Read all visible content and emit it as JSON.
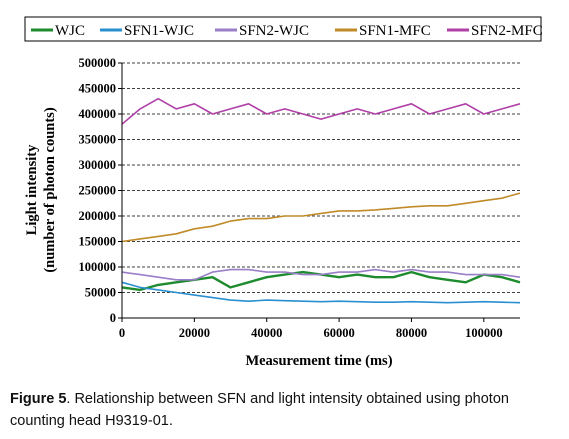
{
  "chart_data": {
    "type": "line",
    "xlabel": "Measurement time (ms)",
    "ylabel": [
      "Light intensity",
      "(number of photon counts)"
    ],
    "xlim": [
      0,
      110000
    ],
    "ylim": [
      0,
      500000
    ],
    "x_ticks": [
      "0",
      "20000",
      "40000",
      "60000",
      "80000",
      "100000"
    ],
    "y_ticks": [
      "0",
      "50000",
      "100000",
      "150000",
      "200000",
      "250000",
      "300000",
      "350000",
      "400000",
      "450000",
      "500000"
    ],
    "grid": "horizontal dashed",
    "legend_position": "top",
    "series": [
      {
        "name": "WJC",
        "color": "#1e8c2e",
        "x": [
          0,
          5000,
          10000,
          15000,
          20000,
          25000,
          30000,
          35000,
          40000,
          45000,
          50000,
          55000,
          60000,
          65000,
          70000,
          75000,
          80000,
          85000,
          90000,
          95000,
          100000,
          105000,
          110000
        ],
        "y": [
          60000,
          55000,
          65000,
          70000,
          75000,
          80000,
          60000,
          70000,
          80000,
          85000,
          90000,
          85000,
          80000,
          85000,
          80000,
          80000,
          90000,
          80000,
          75000,
          70000,
          85000,
          80000,
          70000
        ]
      },
      {
        "name": "SFN1-WJC",
        "color": "#2a8fd0",
        "x": [
          0,
          5000,
          10000,
          15000,
          20000,
          25000,
          30000,
          35000,
          40000,
          45000,
          50000,
          55000,
          60000,
          65000,
          70000,
          75000,
          80000,
          85000,
          90000,
          95000,
          100000,
          105000,
          110000
        ],
        "y": [
          70000,
          60000,
          55000,
          50000,
          45000,
          40000,
          35000,
          33000,
          35000,
          34000,
          33000,
          32000,
          33000,
          32000,
          31000,
          31000,
          32000,
          31000,
          30000,
          31000,
          32000,
          31000,
          30000
        ]
      },
      {
        "name": "SFN2-WJC",
        "color": "#9a7fc8",
        "x": [
          0,
          5000,
          10000,
          15000,
          20000,
          25000,
          30000,
          35000,
          40000,
          45000,
          50000,
          55000,
          60000,
          65000,
          70000,
          75000,
          80000,
          85000,
          90000,
          95000,
          100000,
          105000,
          110000
        ],
        "y": [
          90000,
          85000,
          80000,
          75000,
          75000,
          90000,
          95000,
          95000,
          90000,
          90000,
          85000,
          85000,
          90000,
          90000,
          95000,
          90000,
          95000,
          90000,
          90000,
          85000,
          85000,
          85000,
          80000
        ]
      },
      {
        "name": "SFN1-MFC",
        "color": "#c08a28",
        "x": [
          0,
          5000,
          10000,
          15000,
          20000,
          25000,
          30000,
          35000,
          40000,
          45000,
          50000,
          55000,
          60000,
          65000,
          70000,
          75000,
          80000,
          85000,
          90000,
          95000,
          100000,
          105000,
          110000
        ],
        "y": [
          150000,
          155000,
          160000,
          165000,
          175000,
          180000,
          190000,
          195000,
          195000,
          200000,
          200000,
          205000,
          210000,
          210000,
          212000,
          215000,
          218000,
          220000,
          220000,
          225000,
          230000,
          235000,
          245000
        ]
      },
      {
        "name": "SFN2-MFC",
        "color": "#b03fa8",
        "x": [
          0,
          5000,
          10000,
          15000,
          20000,
          25000,
          30000,
          35000,
          40000,
          45000,
          50000,
          55000,
          60000,
          65000,
          70000,
          75000,
          80000,
          85000,
          90000,
          95000,
          100000,
          105000,
          110000
        ],
        "y": [
          380000,
          410000,
          430000,
          410000,
          420000,
          400000,
          410000,
          420000,
          400000,
          410000,
          400000,
          390000,
          400000,
          410000,
          400000,
          410000,
          420000,
          400000,
          410000,
          420000,
          400000,
          410000,
          420000
        ]
      }
    ]
  },
  "caption": {
    "label": "Figure 5",
    "text": ". Relationship between SFN and light intensity obtained using photon counting head H9319-01."
  }
}
